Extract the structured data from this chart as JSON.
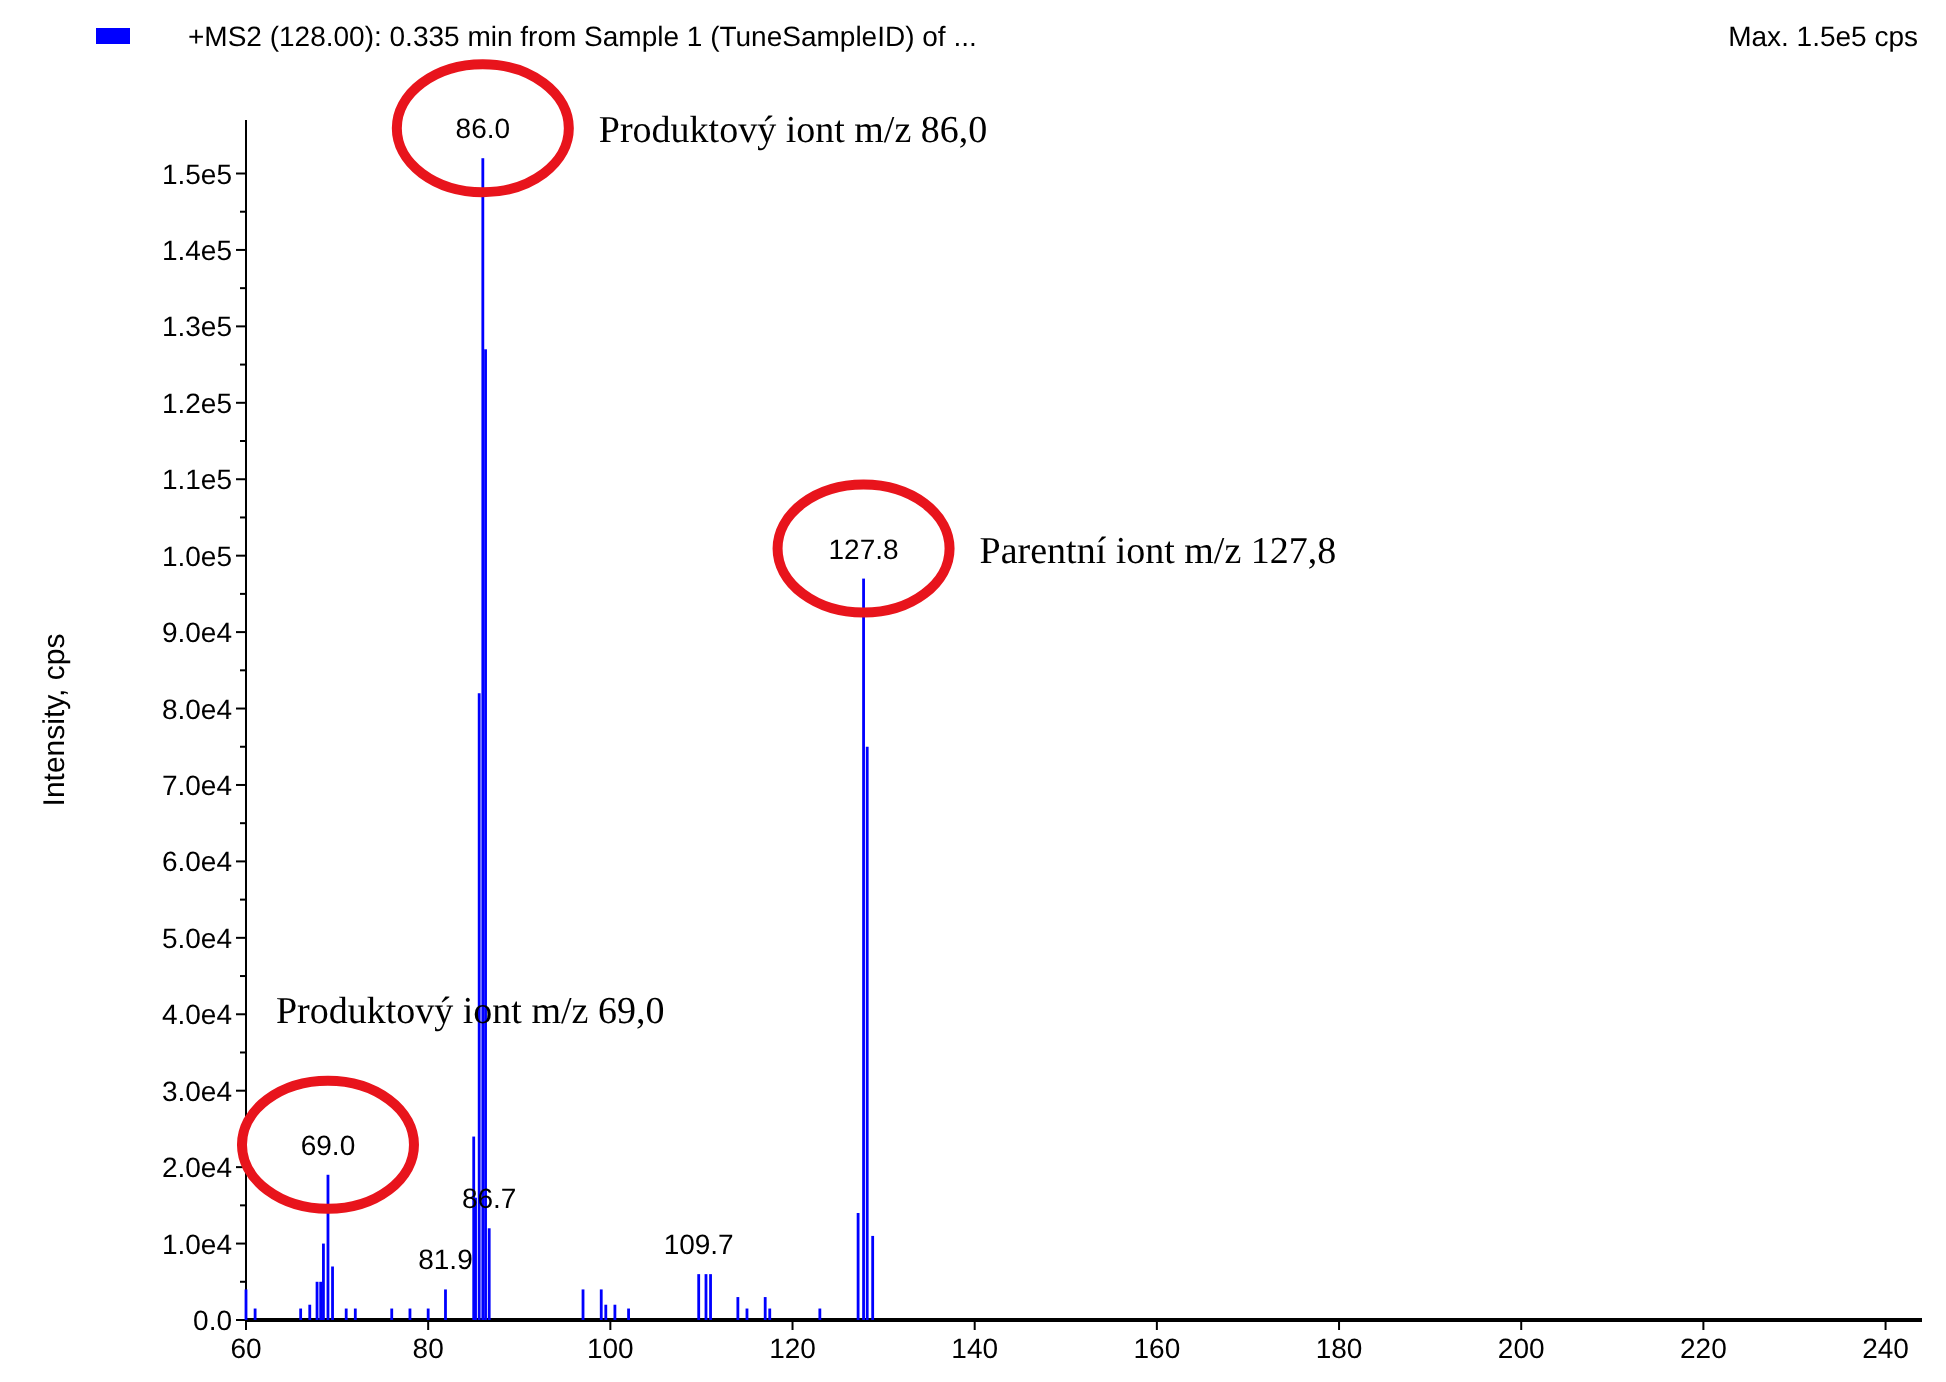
{
  "chart_data": {
    "type": "bar",
    "subtitle": "Max. 1.5e5 cps",
    "ylabel": "Intensity, cps",
    "legend": "top left",
    "x": [
      60,
      61,
      66,
      67,
      67.8,
      68.2,
      68.5,
      69.0,
      69.5,
      71,
      72,
      76,
      78,
      80,
      81.9,
      85.0,
      85.2,
      85.6,
      86.0,
      86.3,
      86.7,
      97,
      99,
      99.5,
      100.5,
      102,
      109.7,
      110.5,
      111,
      114,
      115,
      117,
      117.5,
      123,
      127.2,
      127.8,
      128.2,
      128.8
    ],
    "series": [
      {
        "name": "+MS2 (128.00): 0.335 min from Sample 1 (TuneSampleID) of ...",
        "color": "#0000ff",
        "values": [
          4000,
          1500,
          1500,
          2000,
          5000,
          5000,
          10000,
          19000,
          7000,
          1500,
          1500,
          1500,
          1500,
          1500,
          4000,
          24000,
          16000,
          82000,
          152000,
          127000,
          12000,
          4000,
          4000,
          2000,
          2000,
          1500,
          6000,
          6000,
          6000,
          3000,
          1500,
          3000,
          1500,
          1500,
          14000,
          97000,
          75000,
          11000
        ]
      }
    ],
    "xlim": [
      60,
      244
    ],
    "xticks": [
      60,
      80,
      100,
      120,
      140,
      160,
      180,
      200,
      220,
      240
    ],
    "ylim": [
      0,
      157000
    ],
    "yticks": [
      {
        "value": 0,
        "label": "0.0"
      },
      {
        "value": 5000,
        "label": null
      },
      {
        "value": 10000,
        "label": "1.0e4"
      },
      {
        "value": 15000,
        "label": null
      },
      {
        "value": 20000,
        "label": "2.0e4"
      },
      {
        "value": 25000,
        "label": null
      },
      {
        "value": 30000,
        "label": "3.0e4"
      },
      {
        "value": 35000,
        "label": null
      },
      {
        "value": 40000,
        "label": "4.0e4"
      },
      {
        "value": 45000,
        "label": null
      },
      {
        "value": 50000,
        "label": "5.0e4"
      },
      {
        "value": 55000,
        "label": null
      },
      {
        "value": 60000,
        "label": "6.0e4"
      },
      {
        "value": 65000,
        "label": null
      },
      {
        "value": 70000,
        "label": "7.0e4"
      },
      {
        "value": 75000,
        "label": null
      },
      {
        "value": 80000,
        "label": "8.0e4"
      },
      {
        "value": 85000,
        "label": null
      },
      {
        "value": 90000,
        "label": "9.0e4"
      },
      {
        "value": 95000,
        "label": null
      },
      {
        "value": 100000,
        "label": "1.0e5"
      },
      {
        "value": 105000,
        "label": null
      },
      {
        "value": 110000,
        "label": "1.1e5"
      },
      {
        "value": 115000,
        "label": null
      },
      {
        "value": 120000,
        "label": "1.2e5"
      },
      {
        "value": 125000,
        "label": null
      },
      {
        "value": 130000,
        "label": "1.3e5"
      },
      {
        "value": 135000,
        "label": null
      },
      {
        "value": 140000,
        "label": "1.4e5"
      },
      {
        "value": 145000,
        "label": null
      },
      {
        "value": 150000,
        "label": "1.5e5"
      }
    ],
    "grid": false,
    "annotations": [
      {
        "text": "86.0",
        "x": 86.0,
        "y": 152000
      },
      "Produktový iont m/z 86,0",
      {
        "text": "127.8",
        "x": 127.8,
        "y": 97000
      },
      "Parentní iont m/z 127,8",
      {
        "text": "69.0",
        "x": 69.0,
        "y": 19000
      },
      "Produktový iont m/z 69,0",
      {
        "text": "81.9",
        "x": 81.9,
        "y": 4000
      },
      {
        "text": "86.7",
        "x": 86.7,
        "y": 12000
      },
      {
        "text": "109.7",
        "x": 109.7,
        "y": 6000
      }
    ]
  }
}
